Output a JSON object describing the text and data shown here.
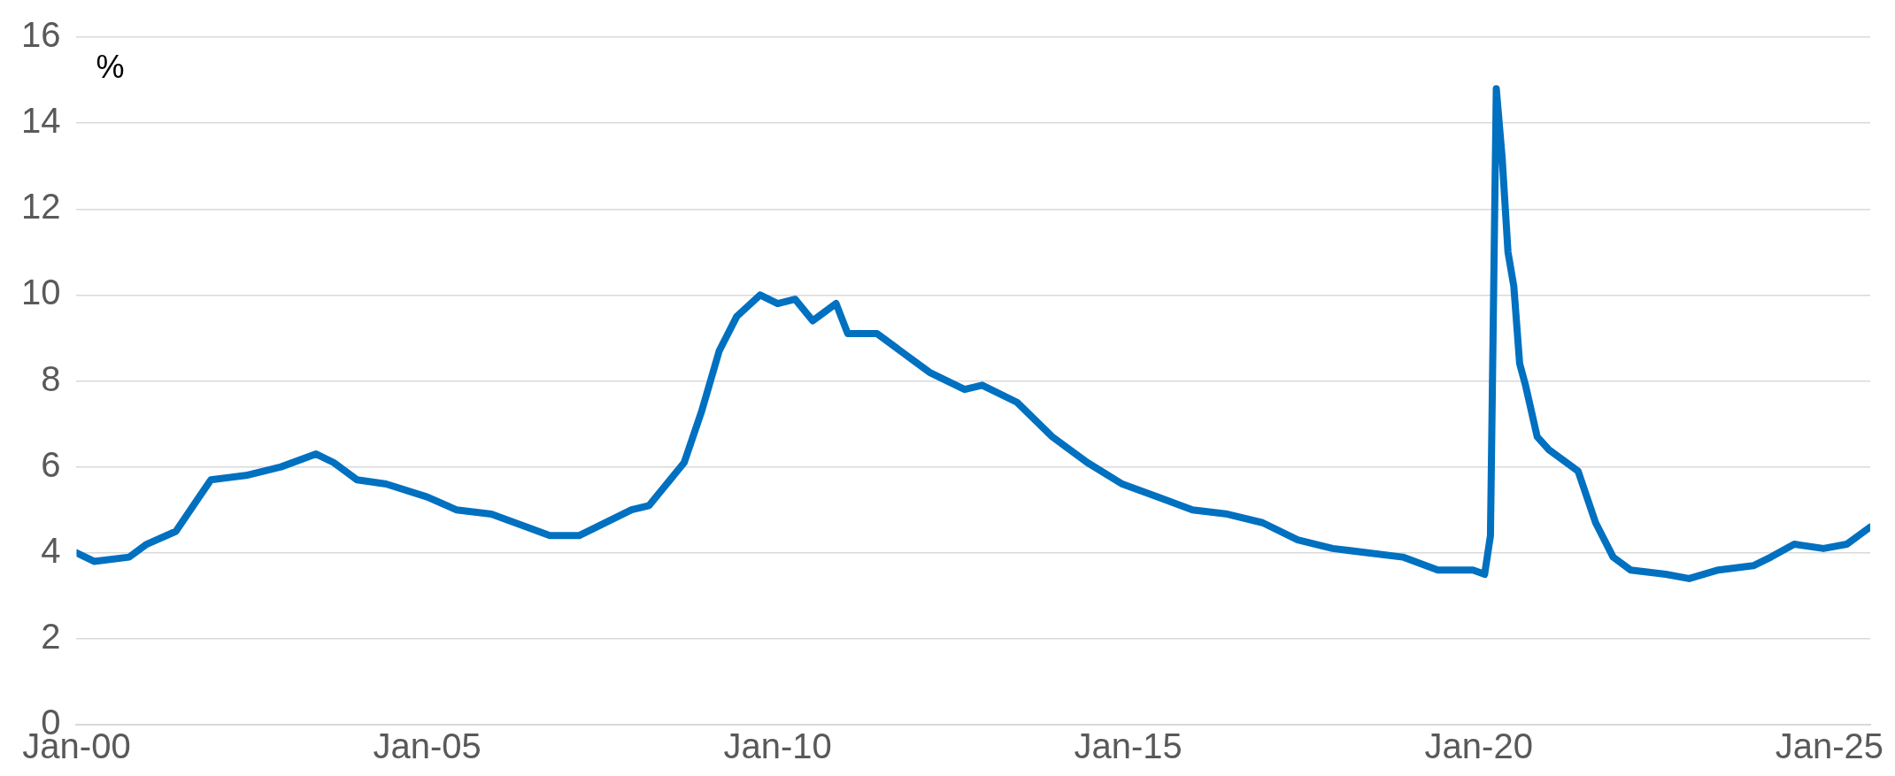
{
  "chart_data": {
    "type": "line",
    "ylabel": "%",
    "x": [
      "2000-01",
      "2000-04",
      "2000-10",
      "2001-01",
      "2001-06",
      "2001-10",
      "2001-12",
      "2002-06",
      "2002-12",
      "2003-06",
      "2003-09",
      "2004-01",
      "2004-06",
      "2005-01",
      "2005-06",
      "2005-12",
      "2006-06",
      "2006-10",
      "2007-03",
      "2007-06",
      "2007-12",
      "2008-03",
      "2008-06",
      "2008-09",
      "2008-12",
      "2009-03",
      "2009-06",
      "2009-10",
      "2010-01",
      "2010-04",
      "2010-07",
      "2010-11",
      "2011-01",
      "2011-06",
      "2011-12",
      "2012-03",
      "2012-09",
      "2012-12",
      "2013-06",
      "2013-12",
      "2014-06",
      "2014-12",
      "2015-06",
      "2015-12",
      "2016-06",
      "2016-12",
      "2017-06",
      "2017-12",
      "2018-06",
      "2018-12",
      "2019-06",
      "2019-12",
      "2020-02",
      "2020-03",
      "2020-04",
      "2020-05",
      "2020-06",
      "2020-07",
      "2020-08",
      "2020-09",
      "2020-11",
      "2021-01",
      "2021-04",
      "2021-06",
      "2021-09",
      "2021-12",
      "2022-03",
      "2022-09",
      "2023-01",
      "2023-06",
      "2023-12",
      "2024-03",
      "2024-07",
      "2024-12",
      "2025-04",
      "2025-08"
    ],
    "series": [
      {
        "color": "#0070c0",
        "values": [
          4.0,
          3.8,
          3.9,
          4.2,
          4.5,
          5.3,
          5.7,
          5.8,
          6.0,
          6.3,
          6.1,
          5.7,
          5.6,
          5.3,
          5.0,
          4.9,
          4.6,
          4.4,
          4.4,
          4.6,
          5.0,
          5.1,
          5.6,
          6.1,
          7.3,
          8.7,
          9.5,
          10.0,
          9.8,
          9.9,
          9.4,
          9.8,
          9.1,
          9.1,
          8.5,
          8.2,
          7.8,
          7.9,
          7.5,
          6.7,
          6.1,
          5.6,
          5.3,
          5.0,
          4.9,
          4.7,
          4.3,
          4.1,
          4.0,
          3.9,
          3.6,
          3.6,
          3.5,
          4.4,
          14.8,
          13.2,
          11.0,
          10.2,
          8.4,
          7.9,
          6.7,
          6.4,
          6.1,
          5.9,
          4.7,
          3.9,
          3.6,
          3.5,
          3.4,
          3.6,
          3.7,
          3.9,
          4.2,
          4.1,
          4.2,
          4.6
        ]
      }
    ],
    "xlim": [
      "2000-01",
      "2025-08"
    ],
    "xticks": [
      {
        "value": "2000-01",
        "label": "Jan-00"
      },
      {
        "value": "2005-01",
        "label": "Jan-05"
      },
      {
        "value": "2010-01",
        "label": "Jan-10"
      },
      {
        "value": "2015-01",
        "label": "Jan-15"
      },
      {
        "value": "2020-01",
        "label": "Jan-20"
      },
      {
        "value": "2025-01",
        "label": "Jan-25"
      }
    ],
    "ylim": [
      0,
      16
    ],
    "yticks": [
      0,
      2,
      4,
      6,
      8,
      10,
      12,
      14,
      16
    ],
    "grid": "y",
    "legend": false,
    "marker": "none",
    "line_style": "solid"
  }
}
